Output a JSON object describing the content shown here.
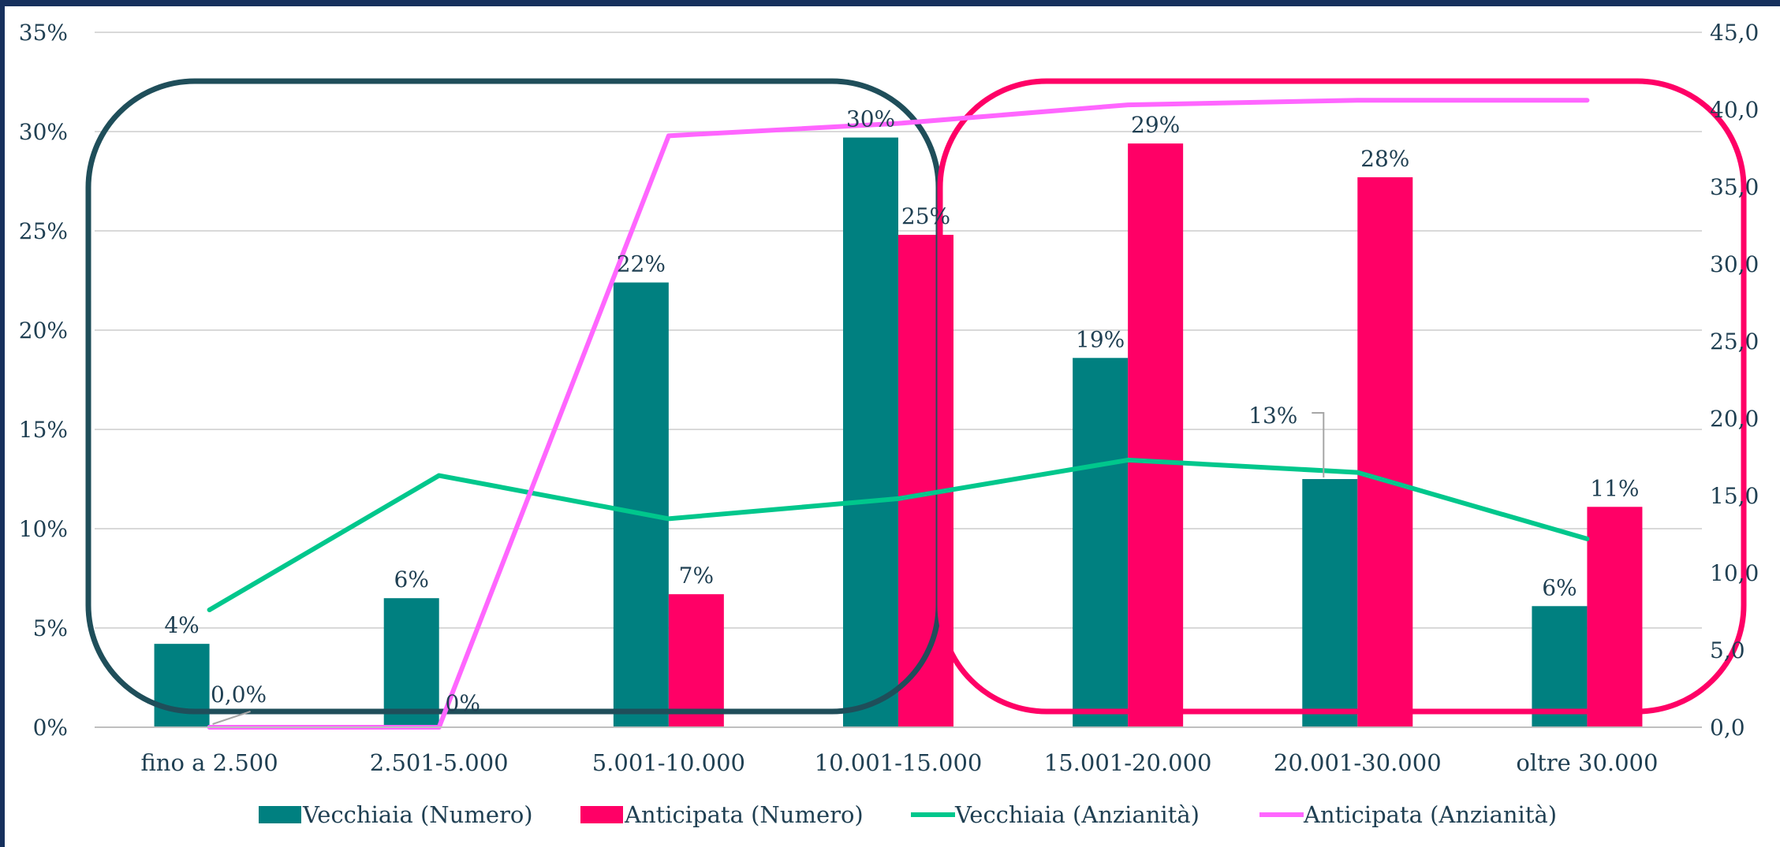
{
  "chart_data": {
    "type": "bar",
    "categories": [
      "fino a 2.500",
      "2.501-5.000",
      "5.001-10.000",
      "10.001-15.000",
      "15.001-20.000",
      "20.001-30.000",
      "oltre 30.000"
    ],
    "series": [
      {
        "name": "Vecchiaia (Numero)",
        "type": "bar",
        "axis": "left",
        "color": "#008080",
        "values": [
          4.2,
          6.5,
          22.4,
          29.7,
          18.6,
          12.5,
          6.1
        ],
        "labels": [
          "4%",
          "6%",
          "22%",
          "30%",
          "19%",
          "13%",
          "6%"
        ]
      },
      {
        "name": "Anticipata (Numero)",
        "type": "bar",
        "axis": "left",
        "color": "#ff0066",
        "values": [
          0.0,
          0.0,
          6.7,
          24.8,
          29.4,
          27.7,
          11.1
        ],
        "labels": [
          "0,0%",
          "0%",
          "7%",
          "25%",
          "29%",
          "28%",
          "11%"
        ]
      },
      {
        "name": "Vecchiaia (Anzianità)",
        "type": "line",
        "axis": "right",
        "color": "#00c78c",
        "values": [
          7.6,
          16.3,
          13.5,
          14.8,
          17.3,
          16.5,
          12.2
        ]
      },
      {
        "name": "Anticipata (Anzianità)",
        "type": "line",
        "axis": "right",
        "color": "#ff66ff",
        "values": [
          0.0,
          0.0,
          38.3,
          39.1,
          40.3,
          40.6,
          40.6
        ]
      }
    ],
    "ylim_left": [
      0,
      35
    ],
    "yticks_left": [
      "0%",
      "5%",
      "10%",
      "15%",
      "20%",
      "25%",
      "30%",
      "35%"
    ],
    "ylim_right": [
      0,
      45
    ],
    "yticks_right": [
      "0,0",
      "5,0",
      "10,0",
      "15,0",
      "20,0",
      "25,0",
      "30,0",
      "35,0",
      "40,0",
      "45,0"
    ],
    "grid": true,
    "legend_position": "bottom",
    "highlight_groups": [
      {
        "name": "left-group-outline",
        "color": "#1f4e5a",
        "from_category": 0,
        "to_category": 3
      },
      {
        "name": "right-group-outline",
        "color": "#ff0066",
        "from_category": 3,
        "to_category": 6
      }
    ]
  }
}
